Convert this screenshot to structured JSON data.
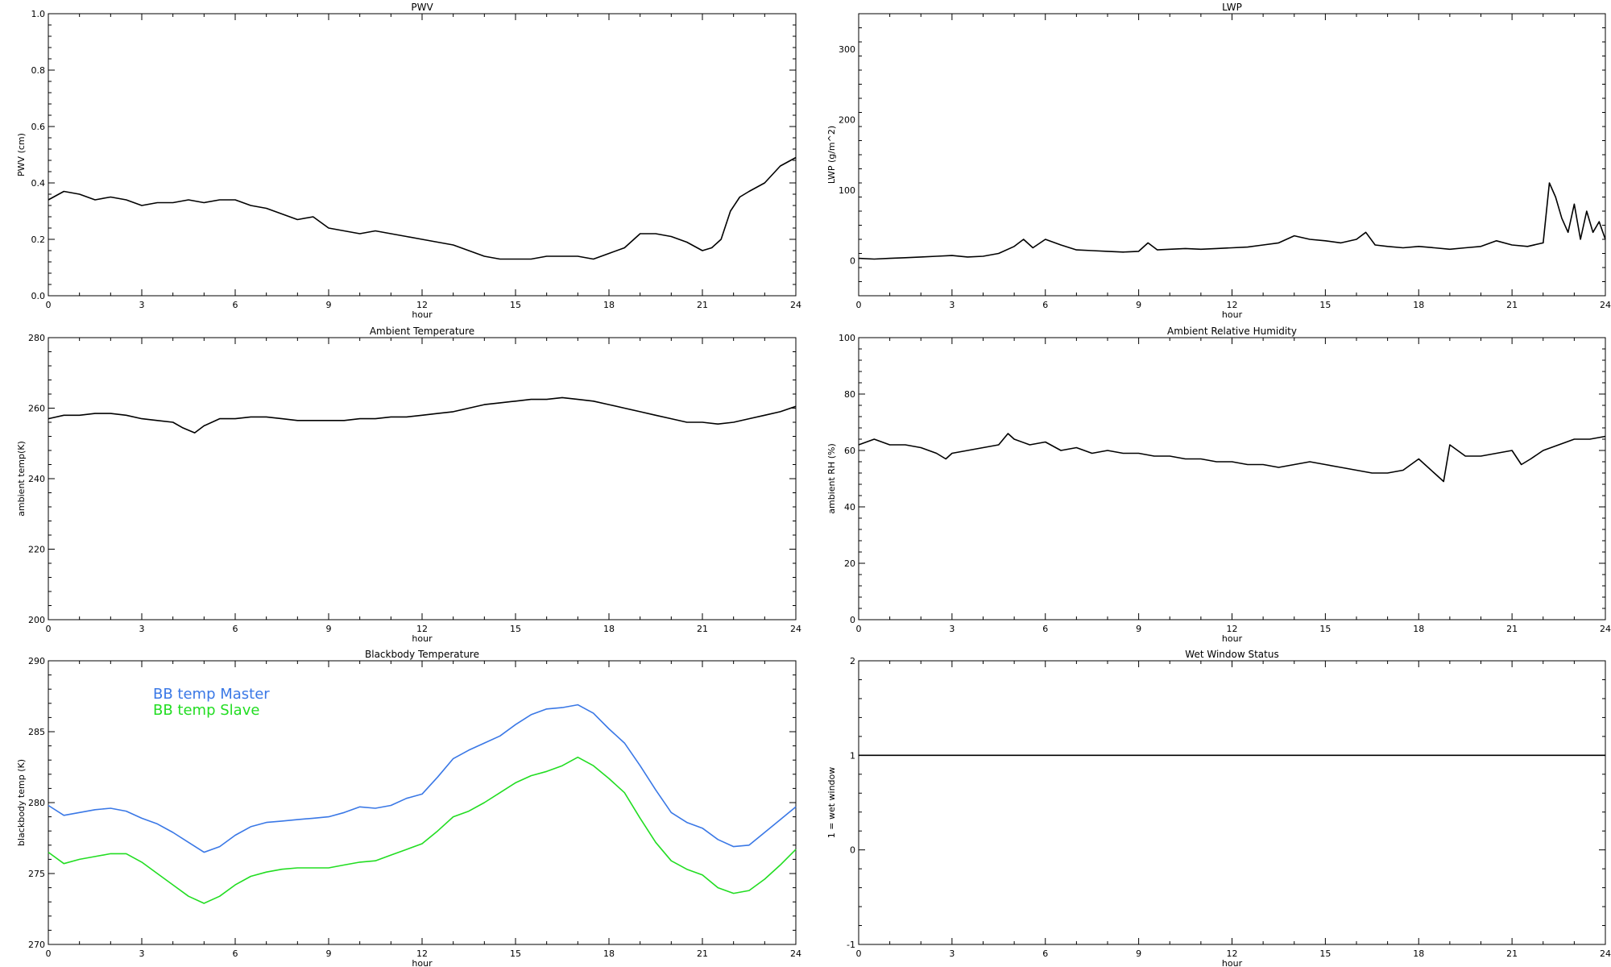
{
  "chart_data": [
    {
      "type": "line",
      "title": "PWV",
      "xlabel": "hour",
      "ylabel": "PWV (cm)",
      "xlim": [
        0,
        24
      ],
      "ylim": [
        0.0,
        1.0
      ],
      "xticks": [
        "0",
        "3",
        "6",
        "9",
        "12",
        "15",
        "18",
        "21",
        "24"
      ],
      "yticks": [
        "0.0",
        "0.2",
        "0.4",
        "0.6",
        "0.8",
        "1.0"
      ],
      "series": [
        {
          "color": "#000000",
          "x": [
            0,
            0.5,
            1,
            1.5,
            2,
            2.5,
            3,
            3.5,
            4,
            4.5,
            5,
            5.5,
            6,
            6.5,
            7,
            7.5,
            8,
            8.5,
            9,
            9.5,
            10,
            10.5,
            11,
            11.5,
            12,
            12.5,
            13,
            13.5,
            14,
            14.5,
            15,
            15.5,
            16,
            16.5,
            17,
            17.5,
            18,
            18.5,
            19,
            19.5,
            20,
            20.5,
            21,
            21.3,
            21.6,
            21.9,
            22.2,
            22.5,
            23,
            23.5,
            24
          ],
          "values": [
            0.34,
            0.37,
            0.36,
            0.34,
            0.35,
            0.34,
            0.32,
            0.33,
            0.33,
            0.34,
            0.33,
            0.34,
            0.34,
            0.32,
            0.31,
            0.29,
            0.27,
            0.28,
            0.24,
            0.23,
            0.22,
            0.23,
            0.22,
            0.21,
            0.2,
            0.19,
            0.18,
            0.16,
            0.14,
            0.13,
            0.13,
            0.13,
            0.14,
            0.14,
            0.14,
            0.13,
            0.15,
            0.17,
            0.22,
            0.22,
            0.21,
            0.19,
            0.16,
            0.17,
            0.2,
            0.3,
            0.35,
            0.37,
            0.4,
            0.46,
            0.49
          ]
        }
      ]
    },
    {
      "type": "line",
      "title": "LWP",
      "xlabel": "hour",
      "ylabel": "LWP (g/m^2)",
      "xlim": [
        0,
        24
      ],
      "ylim": [
        -50,
        350
      ],
      "xticks": [
        "0",
        "3",
        "6",
        "9",
        "12",
        "15",
        "18",
        "21",
        "24"
      ],
      "yticks": [
        "0",
        "100",
        "200",
        "300"
      ],
      "series": [
        {
          "color": "#000000",
          "x": [
            0,
            0.5,
            1,
            1.5,
            2,
            2.5,
            3,
            3.5,
            4,
            4.5,
            5,
            5.3,
            5.6,
            6,
            6.5,
            7,
            7.5,
            8,
            8.5,
            9,
            9.3,
            9.6,
            10,
            10.5,
            11,
            11.5,
            12,
            12.5,
            13,
            13.5,
            14,
            14.5,
            15,
            15.5,
            16,
            16.3,
            16.6,
            17,
            17.5,
            18,
            18.5,
            19,
            19.5,
            20,
            20.5,
            21,
            21.5,
            22,
            22.2,
            22.4,
            22.6,
            22.8,
            23,
            23.2,
            23.4,
            23.6,
            23.8,
            24
          ],
          "values": [
            3,
            2,
            3,
            4,
            5,
            6,
            7,
            5,
            6,
            10,
            20,
            30,
            18,
            30,
            22,
            15,
            14,
            13,
            12,
            13,
            25,
            15,
            16,
            17,
            16,
            17,
            18,
            19,
            22,
            25,
            35,
            30,
            28,
            25,
            30,
            40,
            22,
            20,
            18,
            20,
            18,
            16,
            18,
            20,
            28,
            22,
            20,
            25,
            110,
            90,
            60,
            40,
            80,
            30,
            70,
            40,
            55,
            30
          ]
        }
      ]
    },
    {
      "type": "line",
      "title": "Ambient Temperature",
      "xlabel": "hour",
      "ylabel": "ambient temp(K)",
      "xlim": [
        0,
        24
      ],
      "ylim": [
        200,
        280
      ],
      "xticks": [
        "0",
        "3",
        "6",
        "9",
        "12",
        "15",
        "18",
        "21",
        "24"
      ],
      "yticks": [
        "200",
        "220",
        "240",
        "260",
        "280"
      ],
      "series": [
        {
          "color": "#000000",
          "x": [
            0,
            0.5,
            1,
            1.5,
            2,
            2.5,
            3,
            3.5,
            4,
            4.3,
            4.7,
            5,
            5.5,
            6,
            6.5,
            7,
            7.5,
            8,
            8.5,
            9,
            9.5,
            10,
            10.5,
            11,
            11.5,
            12,
            12.5,
            13,
            13.5,
            14,
            14.5,
            15,
            15.5,
            16,
            16.5,
            17,
            17.5,
            18,
            18.5,
            19,
            19.5,
            20,
            20.5,
            21,
            21.5,
            22,
            22.5,
            23,
            23.5,
            24
          ],
          "values": [
            257,
            258,
            258,
            258.5,
            258.5,
            258,
            257,
            256.5,
            256,
            254.5,
            253,
            255,
            257,
            257,
            257.5,
            257.5,
            257,
            256.5,
            256.5,
            256.5,
            256.5,
            257,
            257,
            257.5,
            257.5,
            258,
            258.5,
            259,
            260,
            261,
            261.5,
            262,
            262.5,
            262.5,
            263,
            262.5,
            262,
            261,
            260,
            259,
            258,
            257,
            256,
            256,
            255.5,
            256,
            257,
            258,
            259,
            260.5
          ]
        }
      ]
    },
    {
      "type": "line",
      "title": "Ambient Relative Humidity",
      "xlabel": "hour",
      "ylabel": "ambient RH (%)",
      "xlim": [
        0,
        24
      ],
      "ylim": [
        0,
        100
      ],
      "xticks": [
        "0",
        "3",
        "6",
        "9",
        "12",
        "15",
        "18",
        "21",
        "24"
      ],
      "yticks": [
        "0",
        "20",
        "40",
        "60",
        "80",
        "100"
      ],
      "series": [
        {
          "color": "#000000",
          "x": [
            0,
            0.5,
            1,
            1.5,
            2,
            2.5,
            2.8,
            3,
            3.5,
            4,
            4.5,
            4.8,
            5,
            5.5,
            6,
            6.5,
            7,
            7.5,
            8,
            8.5,
            9,
            9.5,
            10,
            10.5,
            11,
            11.5,
            12,
            12.5,
            13,
            13.5,
            14,
            14.5,
            15,
            15.5,
            16,
            16.5,
            17,
            17.5,
            18,
            18.5,
            18.8,
            19,
            19.5,
            20,
            20.5,
            21,
            21.3,
            21.6,
            22,
            22.5,
            23,
            23.5,
            24
          ],
          "values": [
            62,
            64,
            62,
            62,
            61,
            59,
            57,
            59,
            60,
            61,
            62,
            66,
            64,
            62,
            63,
            60,
            61,
            59,
            60,
            59,
            59,
            58,
            58,
            57,
            57,
            56,
            56,
            55,
            55,
            54,
            55,
            56,
            55,
            54,
            53,
            52,
            52,
            53,
            57,
            52,
            49,
            62,
            58,
            58,
            59,
            60,
            55,
            57,
            60,
            62,
            64,
            64,
            65
          ]
        }
      ]
    },
    {
      "type": "line",
      "title": "Blackbody Temperature",
      "xlabel": "hour",
      "ylabel": "blackbody temp (K)",
      "xlim": [
        0,
        24
      ],
      "ylim": [
        270,
        290
      ],
      "xticks": [
        "0",
        "3",
        "6",
        "9",
        "12",
        "15",
        "18",
        "21",
        "24"
      ],
      "yticks": [
        "270",
        "275",
        "280",
        "285",
        "290"
      ],
      "legend": "upper-left",
      "series": [
        {
          "name": "BB temp Master",
          "color": "#3a78e6",
          "x": [
            0,
            0.5,
            1,
            1.5,
            2,
            2.5,
            3,
            3.5,
            4,
            4.5,
            5,
            5.5,
            6,
            6.5,
            7,
            7.5,
            8,
            8.5,
            9,
            9.5,
            10,
            10.5,
            11,
            11.5,
            12,
            12.5,
            13,
            13.5,
            14,
            14.5,
            15,
            15.5,
            16,
            16.5,
            17,
            17.5,
            18,
            18.5,
            19,
            19.5,
            20,
            20.5,
            21,
            21.5,
            22,
            22.5,
            23,
            23.5,
            24
          ],
          "values": [
            279.8,
            279.1,
            279.3,
            279.5,
            279.6,
            279.4,
            278.9,
            278.5,
            277.9,
            277.2,
            276.5,
            276.9,
            277.7,
            278.3,
            278.6,
            278.7,
            278.8,
            278.9,
            279.0,
            279.3,
            279.7,
            279.6,
            279.8,
            280.3,
            280.6,
            281.8,
            283.1,
            283.7,
            284.2,
            284.7,
            285.5,
            286.2,
            286.6,
            286.7,
            286.9,
            286.3,
            285.2,
            284.2,
            282.6,
            280.9,
            279.3,
            278.6,
            278.2,
            277.4,
            276.9,
            277.0,
            277.9,
            278.8,
            279.7
          ]
        },
        {
          "name": "BB temp Slave",
          "color": "#22dd22",
          "x": [
            0,
            0.5,
            1,
            1.5,
            2,
            2.5,
            3,
            3.5,
            4,
            4.5,
            5,
            5.5,
            6,
            6.5,
            7,
            7.5,
            8,
            8.5,
            9,
            9.5,
            10,
            10.5,
            11,
            11.5,
            12,
            12.5,
            13,
            13.5,
            14,
            14.5,
            15,
            15.5,
            16,
            16.5,
            17,
            17.5,
            18,
            18.5,
            19,
            19.5,
            20,
            20.5,
            21,
            21.5,
            22,
            22.5,
            23,
            23.5,
            24
          ],
          "values": [
            276.5,
            275.7,
            276.0,
            276.2,
            276.4,
            276.4,
            275.8,
            275.0,
            274.2,
            273.4,
            272.9,
            273.4,
            274.2,
            274.8,
            275.1,
            275.3,
            275.4,
            275.4,
            275.4,
            275.6,
            275.8,
            275.9,
            276.3,
            276.7,
            277.1,
            278.0,
            279.0,
            279.4,
            280.0,
            280.7,
            281.4,
            281.9,
            282.2,
            282.6,
            283.2,
            282.6,
            281.7,
            280.7,
            278.9,
            277.2,
            275.9,
            275.3,
            274.9,
            274.0,
            273.6,
            273.8,
            274.6,
            275.6,
            276.7
          ]
        }
      ]
    },
    {
      "type": "line",
      "title": "Wet Window Status",
      "xlabel": "hour",
      "ylabel": "1 = wet window",
      "xlim": [
        0,
        24
      ],
      "ylim": [
        -1,
        2
      ],
      "xticks": [
        "0",
        "3",
        "6",
        "9",
        "12",
        "15",
        "18",
        "21",
        "24"
      ],
      "yticks": [
        "-1",
        "0",
        "1",
        "2"
      ],
      "series": [
        {
          "color": "#000000",
          "x": [
            0,
            24
          ],
          "values": [
            1,
            1
          ]
        }
      ]
    }
  ]
}
